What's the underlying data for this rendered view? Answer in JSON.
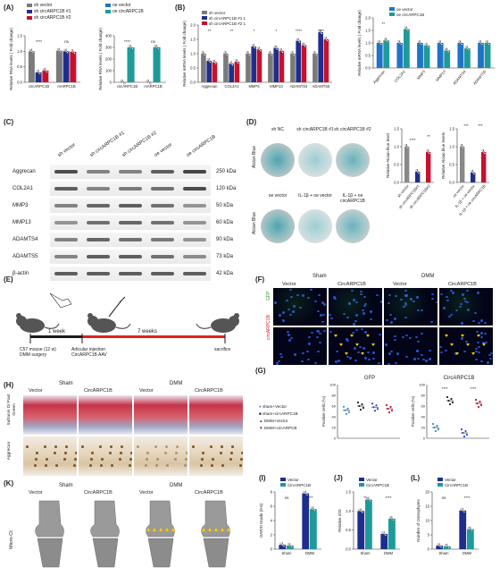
{
  "panels": {
    "A": "(A)",
    "B": "(B)",
    "C": "(C)",
    "D": "(D)",
    "E": "(E)",
    "F": "(F)",
    "G": "(G)",
    "H": "(H)",
    "I": "(I)",
    "J": "(J)",
    "K": "(K)",
    "L": "(L)"
  },
  "legendA": {
    "sh_vector": "sh vector",
    "sh1": "sh circARPC1B #1",
    "sh2": "sh circARPC1B #2",
    "oe_vector": "oe vector",
    "oe_circ": "oe circARPC1B"
  },
  "chartA1": {
    "ylabel": "Relative RNA levels ( Fold change)",
    "xcats": [
      "circARPC1B",
      "mARPC1B"
    ],
    "yticks": [
      "0.0",
      "0.5",
      "1.0",
      "1.5"
    ],
    "sig": [
      "****",
      "ns",
      "ns"
    ]
  },
  "chartA2": {
    "ylabel": "Relative RNA levels ( Fold change)",
    "xcats": [
      "circARPC1B",
      "mARPC1B"
    ],
    "yticks": [
      "0",
      "100",
      "200",
      "300",
      "400"
    ],
    "sig": [
      "****",
      "ns"
    ]
  },
  "chartB1": {
    "ylabel": "Relative mRNA levels ( Fold change)",
    "legend": [
      "sh vector",
      "sh circARPC1B #1 1",
      "sh circARPC1B #2 1"
    ],
    "xcats": [
      "Aggrecan",
      "COL2A1",
      "MMP3",
      "MMP13",
      "ADAMTS4",
      "ADAMTS5"
    ],
    "yticks": [
      "0.0",
      "0.5",
      "1.0",
      "1.5",
      "2.0"
    ],
    "sig": [
      "**",
      "**",
      "*",
      "*",
      "****",
      "****"
    ]
  },
  "chartB2": {
    "ylabel": "Relative mRNA levels ( Fold change)",
    "legend": [
      "oe vector",
      "oe circARPC1B"
    ],
    "xcats": [
      "Aggrecan",
      "COL2A1",
      "MMP3",
      "MMP13",
      "ADAMTS4",
      "ADAMTS5"
    ],
    "yticks": [
      "0.0",
      "0.5",
      "1.0",
      "1.5",
      "2.0"
    ],
    "sig": [
      "**"
    ]
  },
  "blot": {
    "columns": [
      "sh vector",
      "sh circARPC1B #1",
      "sh circARPC1B #2",
      "oe vector",
      "oe circARPC1B"
    ],
    "rows": [
      {
        "name": "Aggrecan",
        "kda": "250 kDa"
      },
      {
        "name": "COL2A1",
        "kda": "120 kDa"
      },
      {
        "name": "MMP3",
        "kda": "50 kDa"
      },
      {
        "name": "MMP13",
        "kda": "60 kDa"
      },
      {
        "name": "ADAMTS4",
        "kda": "90 kDa"
      },
      {
        "name": "ADAMTS5",
        "kda": "73 kDa"
      },
      {
        "name": "β-actin",
        "kda": "42 kDa"
      }
    ]
  },
  "panelD": {
    "row_label": "Alcian Blue",
    "top": [
      "sh NC",
      "sh circARPC1B #1",
      "sh circARPC1B #2"
    ],
    "bottom": [
      "oe vector",
      "IL-1β + oe vector",
      "IL-1β + oe circARPC1B"
    ],
    "chart1_ylabel": "Relative Alcian blue level",
    "chart1_x": [
      "sh vector",
      "sh circARPC1B#1",
      "sh circARPC1B#2"
    ],
    "chart1_sig": [
      "****",
      "**"
    ],
    "chart2_ylabel": "Relative Alcian blue levels",
    "chart2_x": [
      "oe vector",
      "IL-1β + oe vector",
      "IL-1β + oe circARPC1B"
    ],
    "chart2_sig": [
      "***",
      "***"
    ],
    "yticks": [
      "0.0",
      "0.5",
      "1.0",
      "1.5"
    ]
  },
  "panelE": {
    "week1": "1 week",
    "week7": "7 weeks",
    "step1": "C57 mouse (12 w)",
    "step1b": "DMM surgery",
    "step2": "Articular injection",
    "step2b": "CircARPC1B AAV",
    "step3": "sacrifice"
  },
  "panelF": {
    "groups": [
      "Sham",
      "DMM"
    ],
    "cols": [
      "Vector",
      "CircARPC1B",
      "Vector",
      "CircARPC1B"
    ],
    "rows": [
      "GFP",
      "circARPC1B"
    ]
  },
  "panelG": {
    "legend": [
      "sham+Vector",
      "sham+circARPC1B",
      "DMM+Vector",
      "DMM+circARPCB"
    ],
    "chart1_title": "GFP",
    "chart2_title": "CircARPC1B",
    "ylabel": "Positive cells (%)",
    "yticks": [
      "0",
      "20",
      "40",
      "60",
      "80",
      "100"
    ],
    "sig": [
      "****",
      "****"
    ]
  },
  "panelH": {
    "groups": [
      "Sham",
      "DMM"
    ],
    "cols": [
      "Vector",
      "CircARPC1B",
      "Vector",
      "CircARPC1B"
    ],
    "rows": [
      "Safranin O/ Fast Green",
      "Aggrecan"
    ]
  },
  "panelK": {
    "groups": [
      "Sham",
      "DMM"
    ],
    "cols": [
      "Vector",
      "CircARPC1B",
      "Vector",
      "CircARPC1B"
    ],
    "row": "Micro-Ct"
  },
  "panelI": {
    "legend": [
      "Vector",
      "CircARPC1B"
    ],
    "ylabel": "OARSI Grade (0-6)",
    "x": [
      "Sham",
      "DMM"
    ],
    "yticks": [
      "0",
      "2",
      "4",
      "6",
      "8"
    ],
    "sig": [
      "ns",
      "****"
    ]
  },
  "panelJ": {
    "legend": [
      "Vector",
      "CircARPC1B"
    ],
    "ylabel": "Relative IOD",
    "x": [
      "Sham",
      "DMM"
    ],
    "yticks": [
      "0.0",
      "0.5",
      "1.0",
      "1.5"
    ],
    "sig": [
      "**",
      "****"
    ]
  },
  "panelL": {
    "legend": [
      "Vector",
      "CircARPC1B"
    ],
    "ylabel": "Number of Osteophytes",
    "x": [
      "Sham",
      "DMM"
    ],
    "yticks": [
      "0",
      "5",
      "10",
      "15",
      "20"
    ],
    "sig": [
      "ns",
      "****"
    ]
  },
  "colors": {
    "navy": "#1f2e8c",
    "red": "#c8102e",
    "gray": "#7a7a7a",
    "blue": "#1f74c8",
    "teal": "#1f9a9a"
  },
  "chart_data": [
    {
      "type": "bar",
      "panel": "A-left",
      "categories": [
        "circARPC1B",
        "mARPC1B"
      ],
      "series": [
        {
          "name": "sh vector",
          "values": [
            1.0,
            1.02
          ]
        },
        {
          "name": "sh circARPC1B #1",
          "values": [
            0.32,
            1.0
          ]
        },
        {
          "name": "sh circARPC1B #2",
          "values": [
            0.38,
            0.98
          ]
        }
      ],
      "ylim": [
        0,
        1.5
      ]
    },
    {
      "type": "bar",
      "panel": "A-right",
      "categories": [
        "circARPC1B",
        "mARPC1B"
      ],
      "series": [
        {
          "name": "oe vector",
          "values": [
            1,
            1
          ]
        },
        {
          "name": "oe circARPC1B",
          "values": [
            300,
            302
          ]
        }
      ],
      "ylim": [
        0,
        400
      ]
    },
    {
      "type": "bar",
      "panel": "B-left",
      "categories": [
        "Aggrecan",
        "COL2A1",
        "MMP3",
        "MMP13",
        "ADAMTS4",
        "ADAMTS5"
      ],
      "series": [
        {
          "name": "sh vector",
          "values": [
            1.0,
            1.0,
            1.0,
            1.0,
            1.0,
            1.0
          ]
        },
        {
          "name": "sh circARPC1B #1 1",
          "values": [
            0.75,
            0.65,
            1.25,
            1.2,
            1.45,
            1.75
          ]
        },
        {
          "name": "sh circARPC1B #2 1",
          "values": [
            0.7,
            0.72,
            1.15,
            1.1,
            1.3,
            1.5
          ]
        }
      ],
      "ylim": [
        0,
        2.0
      ]
    },
    {
      "type": "bar",
      "panel": "B-right",
      "categories": [
        "Aggrecan",
        "COL2A1",
        "MMP3",
        "MMP13",
        "ADAMTS4",
        "ADAMTS5"
      ],
      "series": [
        {
          "name": "oe vector",
          "values": [
            1.0,
            1.0,
            1.0,
            1.0,
            1.0,
            1.0
          ]
        },
        {
          "name": "oe circARPC1B",
          "values": [
            1.1,
            1.55,
            0.9,
            0.7,
            0.78,
            1.0
          ]
        }
      ],
      "ylim": [
        0,
        2.0
      ]
    },
    {
      "type": "bar",
      "panel": "D-1",
      "categories": [
        "sh vector",
        "sh circARPC1B#1",
        "sh circARPC1B#2"
      ],
      "values": [
        1.0,
        0.3,
        0.85
      ],
      "ylim": [
        0,
        1.5
      ]
    },
    {
      "type": "bar",
      "panel": "D-2",
      "categories": [
        "oe vector",
        "IL-1β + oe vector",
        "IL-1β + oe circARPC1B"
      ],
      "values": [
        1.0,
        0.28,
        0.85
      ],
      "ylim": [
        0,
        1.5
      ]
    },
    {
      "type": "scatter",
      "panel": "G-GFP",
      "categories": [
        "sham+Vector",
        "sham+circARPC1B",
        "DMM+Vector",
        "DMM+circARPCB"
      ],
      "values": [
        52,
        60,
        58,
        55
      ],
      "ylim": [
        0,
        100
      ]
    },
    {
      "type": "scatter",
      "panel": "G-CircARPC1B",
      "categories": [
        "sham+Vector",
        "sham+circARPC1B",
        "DMM+Vector",
        "DMM+circARPCB"
      ],
      "values": [
        20,
        70,
        10,
        65
      ],
      "ylim": [
        0,
        100
      ]
    },
    {
      "type": "bar",
      "panel": "I",
      "categories": [
        "Sham",
        "DMM"
      ],
      "series": [
        {
          "name": "Vector",
          "values": [
            0.6,
            7.8
          ]
        },
        {
          "name": "CircARPC1B",
          "values": [
            0.5,
            5.6
          ]
        }
      ],
      "ylim": [
        0,
        8
      ]
    },
    {
      "type": "bar",
      "panel": "J",
      "categories": [
        "Sham",
        "DMM"
      ],
      "series": [
        {
          "name": "Vector",
          "values": [
            1.0,
            0.4
          ]
        },
        {
          "name": "CircARPC1B",
          "values": [
            1.3,
            0.8
          ]
        }
      ],
      "ylim": [
        0,
        1.5
      ]
    },
    {
      "type": "bar",
      "panel": "L",
      "categories": [
        "Sham",
        "DMM"
      ],
      "series": [
        {
          "name": "Vector",
          "values": [
            1.2,
            13.5
          ]
        },
        {
          "name": "CircARPC1B",
          "values": [
            1.0,
            7.0
          ]
        }
      ],
      "ylim": [
        0,
        20
      ]
    }
  ]
}
